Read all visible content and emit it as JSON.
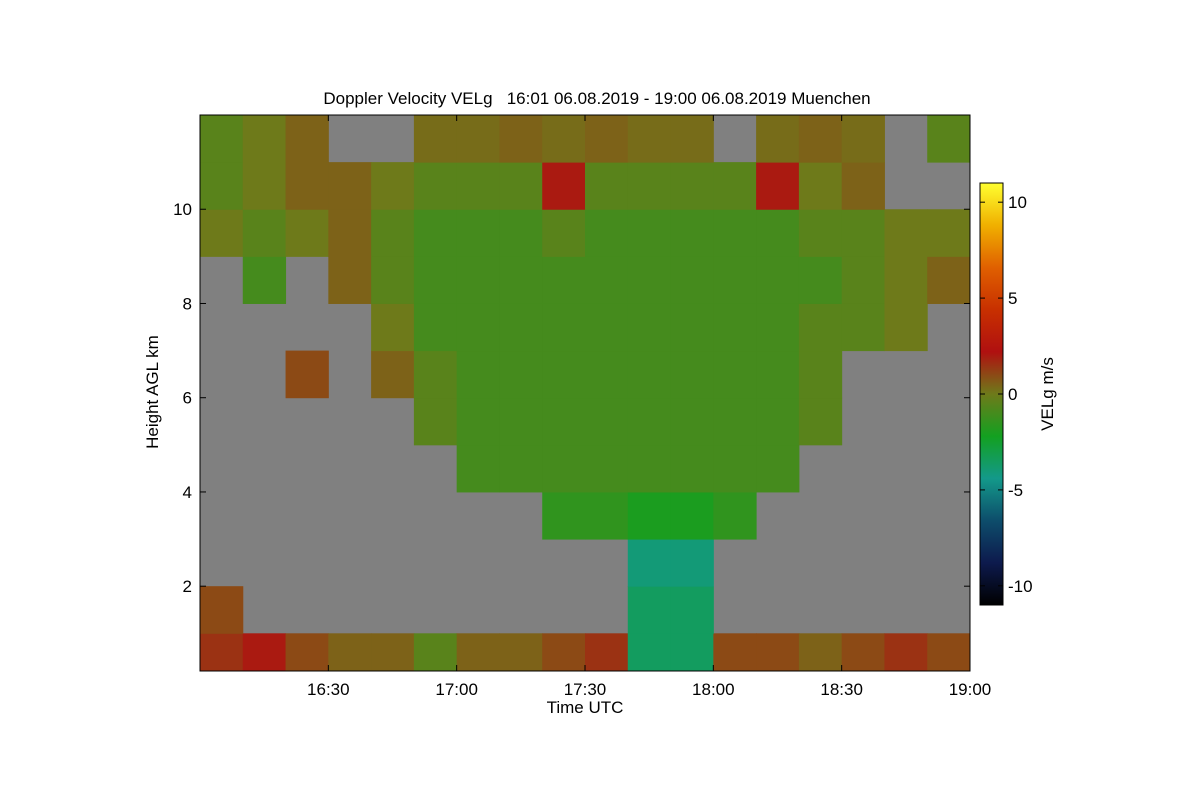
{
  "chart_data": {
    "type": "heatmap",
    "title": "Doppler Velocity VELg   16:01 06.08.2019 - 19:00 06.08.2019 Muenchen",
    "x_label": "Time UTC",
    "y_label": "Height AGL km",
    "colorbar_label": "VELg m/s",
    "xlim": [
      960,
      1140
    ],
    "xticks": [
      {
        "value": 990,
        "label": "16:30"
      },
      {
        "value": 1020,
        "label": "17:00"
      },
      {
        "value": 1050,
        "label": "17:30"
      },
      {
        "value": 1080,
        "label": "18:00"
      },
      {
        "value": 1110,
        "label": "18:30"
      },
      {
        "value": 1140,
        "label": "19:00"
      }
    ],
    "ylim": [
      0.2,
      12
    ],
    "yticks": [
      2,
      4,
      6,
      8,
      10
    ],
    "zlim": [
      -11,
      11
    ],
    "zticks": [
      -10,
      -5,
      0,
      5,
      10
    ],
    "colormap": [
      "#000000",
      "#0d1a4d",
      "#0d4d6b",
      "#13998a",
      "#13a020",
      "#6e7a1a",
      "#b01010",
      "#c83000",
      "#e06000",
      "#f0b000",
      "#ffff30"
    ],
    "background": "#808080",
    "x": [
      965,
      975,
      985,
      995,
      1005,
      1015,
      1025,
      1035,
      1045,
      1055,
      1065,
      1075,
      1085,
      1095,
      1105,
      1115,
      1125,
      1135
    ],
    "y": [
      0.5,
      1.5,
      2.5,
      3.5,
      4.5,
      5.5,
      6.5,
      7.5,
      8.5,
      9.5,
      10.5,
      11.5
    ],
    "z": [
      [
        1.5,
        2,
        1,
        0.5,
        0.5,
        -0.5,
        0.5,
        0.5,
        1,
        1.5,
        -3.5,
        -3.5,
        1,
        1,
        0.5,
        1,
        1.5,
        1
      ],
      [
        1,
        null,
        null,
        null,
        null,
        null,
        null,
        null,
        null,
        null,
        -3.5,
        -3.5,
        null,
        null,
        null,
        null,
        null,
        null
      ],
      [
        null,
        null,
        null,
        null,
        null,
        null,
        null,
        null,
        null,
        null,
        -4,
        -4,
        null,
        null,
        null,
        null,
        null,
        null
      ],
      [
        null,
        null,
        null,
        null,
        null,
        null,
        null,
        null,
        -1.5,
        -1.5,
        -2,
        -2,
        -1.5,
        null,
        null,
        null,
        null,
        null
      ],
      [
        null,
        null,
        null,
        null,
        null,
        null,
        -1,
        -1,
        -1,
        -1,
        -1,
        -1,
        -1,
        -1,
        null,
        null,
        null,
        null
      ],
      [
        null,
        null,
        null,
        null,
        null,
        -0.5,
        -1,
        -1,
        -1,
        -1,
        -1,
        -1,
        -1,
        -1,
        -0.5,
        null,
        null,
        null
      ],
      [
        null,
        null,
        1,
        null,
        0.5,
        -0.5,
        -1,
        -1,
        -1,
        -1,
        -1,
        -1,
        -1,
        -1,
        -0.5,
        null,
        null,
        null
      ],
      [
        null,
        null,
        null,
        null,
        0,
        -1,
        -1,
        -1,
        -1,
        -1,
        -1,
        -1,
        -1,
        -1,
        -0.5,
        -0.5,
        0,
        null
      ],
      [
        null,
        -1,
        null,
        0.5,
        -0.5,
        -1,
        -1,
        -1,
        -1,
        -1,
        -1,
        -1,
        -1,
        -1,
        -1,
        -0.5,
        0,
        0.5
      ],
      [
        0,
        -0.5,
        0,
        0.5,
        -0.5,
        -1,
        -1,
        -1,
        -0.5,
        -1,
        -1,
        -1,
        -1,
        -1,
        -0.5,
        -0.5,
        0,
        0
      ],
      [
        -0.5,
        0,
        0.5,
        0.5,
        0,
        -0.5,
        -0.5,
        -0.5,
        2,
        -0.5,
        -0.5,
        -0.5,
        -0.5,
        2,
        0,
        0.5,
        null,
        null
      ],
      [
        -0.5,
        0,
        0.5,
        null,
        null,
        0.3,
        0.3,
        0.5,
        0.3,
        0.5,
        0.3,
        0.3,
        null,
        0.3,
        0.5,
        0.3,
        null,
        -0.5
      ]
    ]
  }
}
